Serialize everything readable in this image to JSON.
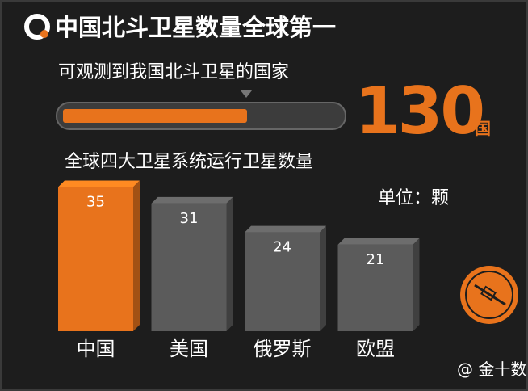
{
  "header": {
    "title": "中国北斗卫星数量全球第一",
    "subtitle": "可观测到我国北斗卫星的国家",
    "highlight_value": 130,
    "highlight_unit": "国"
  },
  "chart_data": {
    "type": "bar3d",
    "title": "全球四大卫星系统运行卫星数量",
    "unit_label": "单位：颗",
    "categories": [
      "中国",
      "美国",
      "俄罗斯",
      "欧盟"
    ],
    "values": [
      35,
      31,
      24,
      21
    ],
    "colors": [
      "#e8731c",
      "#5b5b5b",
      "#5b5b5b",
      "#5b5b5b"
    ]
  },
  "footer": {
    "watermark": "@ 金十数"
  }
}
